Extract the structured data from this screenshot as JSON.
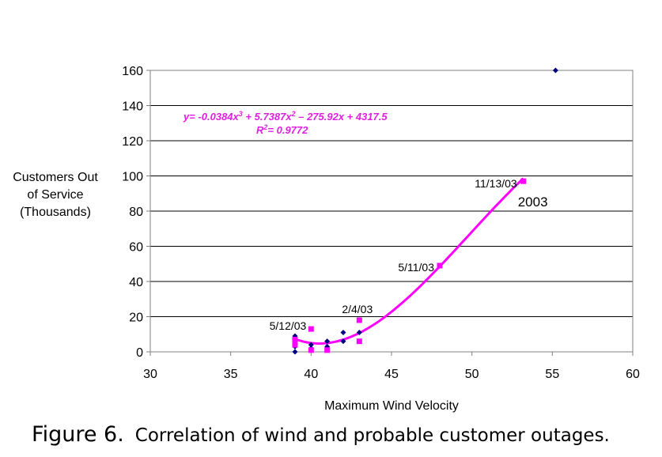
{
  "chart_data": {
    "type": "scatter",
    "xlabel": "Maximum Wind Velocity",
    "ylabel_lines": [
      "Customers Out",
      "of Service",
      "(Thousands)"
    ],
    "xlim": [
      30,
      60
    ],
    "ylim": [
      0,
      160
    ],
    "xticks": [
      30,
      35,
      40,
      45,
      50,
      55,
      60
    ],
    "yticks": [
      0,
      20,
      40,
      60,
      80,
      100,
      120,
      140,
      160
    ],
    "grid": "horizontal",
    "legend": "none",
    "series": [
      {
        "color": "#000080",
        "marker": "diamond",
        "points": [
          [
            39,
            0
          ],
          [
            39,
            3
          ],
          [
            39,
            5
          ],
          [
            39,
            9
          ],
          [
            40,
            2
          ],
          [
            40,
            4
          ],
          [
            41,
            1
          ],
          [
            41,
            3
          ],
          [
            41,
            6
          ],
          [
            42,
            6
          ],
          [
            42,
            11
          ],
          [
            43,
            11
          ],
          [
            55.2,
            160
          ]
        ]
      },
      {
        "color": "#ff00ff",
        "marker": "square",
        "points": [
          [
            39,
            4
          ],
          [
            39,
            7
          ],
          [
            40,
            1
          ],
          [
            40,
            13
          ],
          [
            41,
            1
          ],
          [
            43,
            6
          ],
          [
            43,
            18
          ],
          [
            48,
            49
          ],
          [
            53.2,
            97
          ]
        ]
      }
    ],
    "trendline": {
      "color": "#ff00ff",
      "coefficients": [
        -0.0384,
        5.7387,
        -275.92,
        4317.5
      ],
      "x_range": [
        39,
        53.2
      ],
      "equation": "y= -0.0384x",
      "equation_parts": {
        "a": "y= -0.0384x",
        "e1": "3",
        "b": " + 5.7387x",
        "e2": "2",
        "c": " – 275.92x + 4317.5"
      },
      "r2_label": "R",
      "r2_exp": "2",
      "r2_value": "=  0.9772"
    },
    "annotations": [
      {
        "text": "11/13/03",
        "x": 53.2,
        "y": 97,
        "style": "normal"
      },
      {
        "text": "2003",
        "x": 53.2,
        "y": 97,
        "style": "big"
      },
      {
        "text": "5/11/03",
        "x": 48,
        "y": 49,
        "style": "normal"
      },
      {
        "text": "2/4/03",
        "x": 43,
        "y": 18,
        "style": "normal"
      },
      {
        "text": "5/12/03",
        "x": 40,
        "y": 13,
        "style": "normal"
      }
    ]
  },
  "caption": {
    "figure": "Figure 6.",
    "text": "Correlation of wind and probable customer outages."
  }
}
